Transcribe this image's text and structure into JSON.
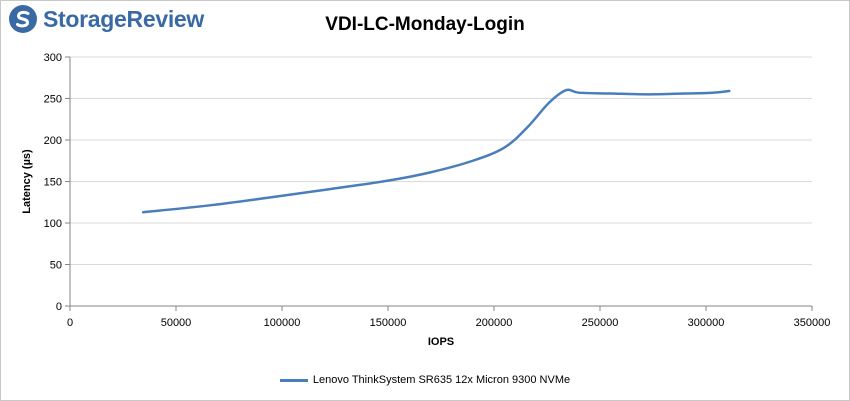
{
  "brand": {
    "name": "StorageReview",
    "color": "#3a6aa3"
  },
  "chart_data": {
    "type": "line",
    "title": "VDI-LC-Monday-Login",
    "xlabel": "IOPS",
    "ylabel": "Latency (µs)",
    "xlim": [
      0,
      350000
    ],
    "ylim": [
      0,
      300
    ],
    "xticks": [
      0,
      50000,
      100000,
      150000,
      200000,
      250000,
      300000,
      350000
    ],
    "yticks": [
      0,
      50,
      100,
      150,
      200,
      250,
      300
    ],
    "grid": "horizontal",
    "legend_position": "bottom",
    "series": [
      {
        "name": "Lenovo ThinkSystem SR635 12x Micron 9300 NVMe",
        "color": "#4a7ebb",
        "x": [
          34500,
          65000,
          95000,
          123000,
          150000,
          170000,
          190000,
          205000,
          216000,
          226000,
          234000,
          240000,
          255000,
          273000,
          290000,
          303000,
          311000
        ],
        "y": [
          113,
          121,
          131,
          141,
          151,
          161,
          175,
          191,
          216,
          245,
          260,
          257,
          256,
          255,
          256,
          257,
          259
        ]
      }
    ]
  }
}
